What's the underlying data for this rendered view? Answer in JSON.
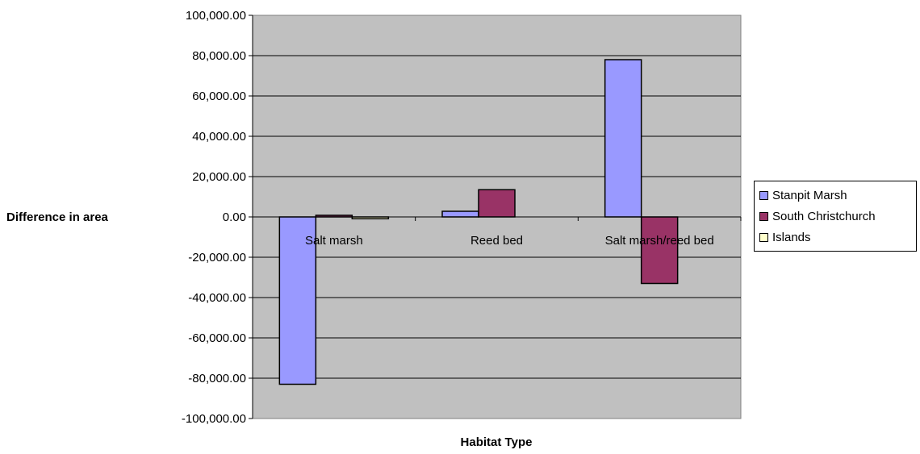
{
  "chart_data": {
    "type": "bar",
    "title": "",
    "xlabel": "Habitat Type",
    "ylabel": "Difference in area",
    "categories": [
      "Salt marsh",
      "Reed bed",
      "Salt marsh/reed bed"
    ],
    "series": [
      {
        "name": "Stanpit Marsh",
        "color": "#9999ff",
        "values": [
          -83000,
          2800,
          78000
        ]
      },
      {
        "name": "South Christchurch",
        "color": "#993366",
        "values": [
          800,
          13500,
          -33000
        ]
      },
      {
        "name": "Islands",
        "color": "#ffffcc",
        "values": [
          -900,
          0,
          0
        ]
      }
    ],
    "ylim": [
      -100000,
      100000
    ],
    "yticks": [
      100000,
      80000,
      60000,
      40000,
      20000,
      0,
      -20000,
      -40000,
      -60000,
      -80000,
      -100000
    ],
    "ytick_labels": [
      "100,000.00",
      "80,000.00",
      "60,000.00",
      "40,000.00",
      "20,000.00",
      "0.00",
      "-20,000.00",
      "-40,000.00",
      "-60,000.00",
      "-80,000.00",
      "-100,000.00"
    ],
    "grid": true,
    "plot_background": "#c0c0c0",
    "legend_position": "right"
  }
}
